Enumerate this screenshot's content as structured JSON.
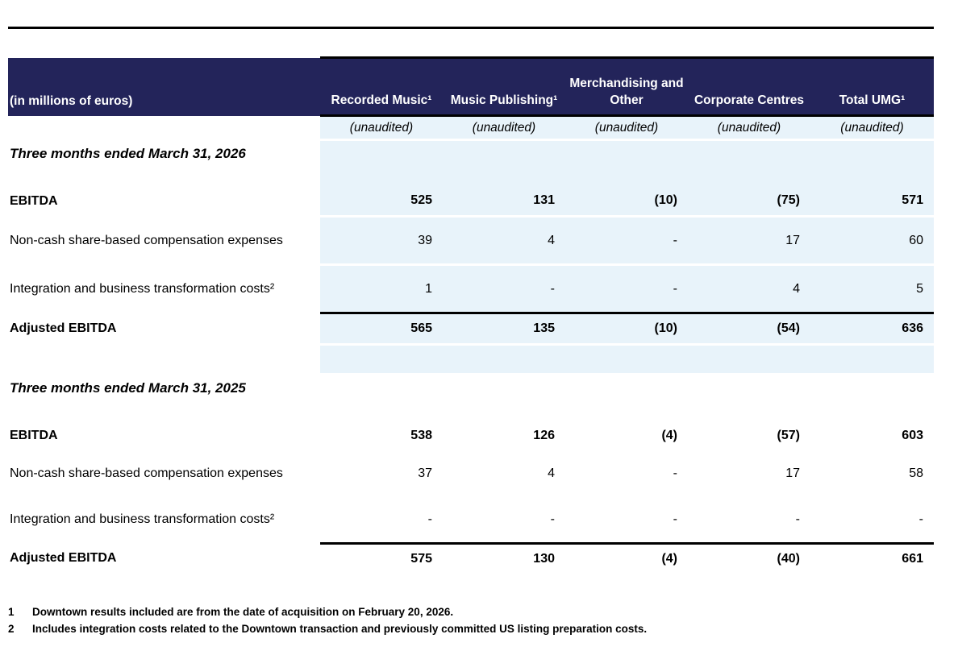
{
  "table": {
    "corner_label": "(in millions of euros)",
    "columns": [
      "Recorded Music¹",
      "Music Publishing¹",
      "Merchandising and Other",
      "Corporate Centres",
      "Total UMG¹"
    ],
    "unaudited": "(unaudited)",
    "sections": [
      {
        "title": "Three months ended March 31, 2026",
        "rows": [
          {
            "label": "EBITDA",
            "values": [
              "525",
              "131",
              "(10)",
              "(75)",
              "571"
            ]
          },
          {
            "label": "Non-cash share-based compensation expenses",
            "values": [
              "39",
              "4",
              "-",
              "17",
              "60"
            ]
          },
          {
            "label": "Integration and business transformation costs²",
            "values": [
              "1",
              "-",
              "-",
              "4",
              "5"
            ]
          },
          {
            "label": "Adjusted EBITDA",
            "values": [
              "565",
              "135",
              "(10)",
              "(54)",
              "636"
            ]
          }
        ]
      },
      {
        "title": "Three months ended March 31, 2025",
        "rows": [
          {
            "label": "EBITDA",
            "values": [
              "538",
              "126",
              "(4)",
              "(57)",
              "603"
            ]
          },
          {
            "label": "Non-cash share-based compensation expenses",
            "values": [
              "37",
              "4",
              "-",
              "17",
              "58"
            ]
          },
          {
            "label": "Integration and business transformation costs²",
            "values": [
              "-",
              "-",
              "-",
              "-",
              "-"
            ]
          },
          {
            "label": "Adjusted EBITDA",
            "values": [
              "575",
              "130",
              "(4)",
              "(40)",
              "661"
            ]
          }
        ]
      }
    ]
  },
  "footnotes": [
    {
      "num": "1",
      "text": "Downtown results included are from the date of acquisition on February 20, 2026."
    },
    {
      "num": "2",
      "text": "Includes integration costs related to the Downtown transaction and previously committed US listing preparation costs."
    }
  ],
  "colors": {
    "header_bg": "#23245A",
    "row_bg": "#E8F3FA",
    "rule": "#000000"
  }
}
